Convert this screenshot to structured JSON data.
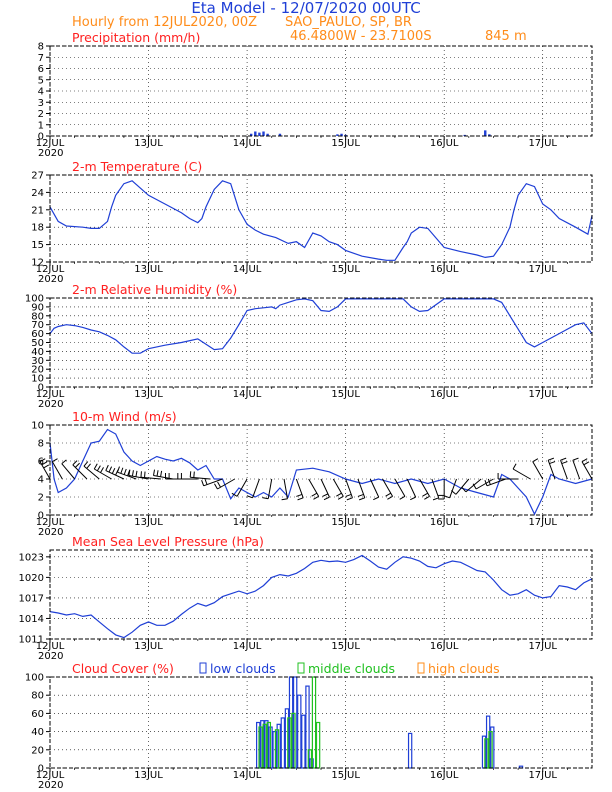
{
  "header": {
    "title": "Eta Model - 12/07/2020 00UTC",
    "subtitle": "Hourly from 12JUL2020, 00Z",
    "location": "SAO_PAULO, SP, BR",
    "coords": "46.4800W - 23.7100S",
    "elevation": "845  m"
  },
  "colors": {
    "title": "#1f3fd6",
    "header": "#ff8c1a",
    "panel_title": "#ff2020",
    "series": "#1f3fd6",
    "low": "#1f3fd6",
    "middle": "#20c020",
    "high": "#ff8c1a",
    "wind_barb": "#000000"
  },
  "time_axis": {
    "start_label": "2020",
    "ticks": [
      "12JUL",
      "13JUL",
      "14JUL",
      "15JUL",
      "16JUL",
      "17JUL"
    ],
    "tick_hours": [
      0,
      24,
      48,
      72,
      96,
      120
    ],
    "range_hours": [
      0,
      132
    ]
  },
  "chart_data": [
    {
      "type": "bar",
      "title": "Precipitation (mm/h)",
      "ylim": [
        0,
        8
      ],
      "yticks": [
        0,
        1,
        2,
        3,
        4,
        5,
        6,
        7,
        8
      ],
      "x": [
        49,
        50,
        51,
        52,
        53,
        56,
        70,
        71,
        72,
        101,
        106,
        107
      ],
      "values": [
        0.2,
        0.4,
        0.3,
        0.4,
        0.2,
        0.2,
        0.15,
        0.2,
        0.1,
        0.1,
        0.5,
        0.15
      ]
    },
    {
      "type": "line",
      "title": "2-m Temperature (C)",
      "ylim": [
        12,
        27
      ],
      "yticks": [
        12,
        15,
        18,
        21,
        24,
        27
      ],
      "x": [
        0,
        2,
        4,
        8,
        10,
        12,
        14,
        15,
        16,
        18,
        20,
        24,
        28,
        32,
        34,
        36,
        37,
        38,
        40,
        42,
        44,
        46,
        48,
        50,
        52,
        55,
        58,
        60,
        62,
        64,
        66,
        68,
        70,
        72,
        76,
        80,
        82,
        84,
        86,
        87,
        88,
        90,
        92,
        96,
        100,
        104,
        106,
        108,
        110,
        112,
        113,
        114,
        116,
        118,
        120,
        122,
        124,
        128,
        131,
        132
      ],
      "values": [
        21.5,
        19,
        18.2,
        18,
        17.8,
        17.8,
        19,
        21.5,
        23.5,
        25.5,
        26,
        23.5,
        22,
        20.5,
        19.5,
        18.8,
        19.5,
        21.5,
        24.5,
        26,
        25.5,
        21,
        18.5,
        17.5,
        16.8,
        16.2,
        15.2,
        15.5,
        14.5,
        17,
        16.5,
        15.5,
        15,
        14,
        13,
        12.5,
        12.3,
        12.3,
        14.5,
        15.5,
        17,
        18,
        17.8,
        14.5,
        13.8,
        13.2,
        12.8,
        13,
        15,
        18,
        21,
        23.5,
        25.5,
        25,
        22,
        21,
        19.5,
        18,
        16.8,
        20
      ]
    },
    {
      "type": "line",
      "title": "2-m Relative Humidity (%)",
      "ylim": [
        0,
        100
      ],
      "yticks": [
        0,
        10,
        20,
        30,
        40,
        50,
        60,
        70,
        80,
        90,
        100
      ],
      "x": [
        0,
        1,
        2,
        4,
        6,
        8,
        10,
        12,
        14,
        16,
        18,
        20,
        22,
        24,
        28,
        32,
        36,
        38,
        40,
        42,
        44,
        46,
        48,
        50,
        52,
        54,
        55,
        56,
        58,
        60,
        62,
        64,
        66,
        68,
        70,
        72,
        76,
        80,
        84,
        86,
        88,
        90,
        92,
        96,
        100,
        104,
        106,
        108,
        110,
        112,
        114,
        116,
        118,
        120,
        124,
        128,
        130,
        132
      ],
      "values": [
        60,
        66,
        68,
        70,
        69,
        67,
        64,
        62,
        58,
        53,
        45,
        38,
        38,
        43,
        47,
        50,
        54,
        48,
        42,
        43,
        55,
        70,
        86,
        88,
        89,
        90,
        88,
        92,
        95,
        98,
        99,
        97,
        86,
        85,
        90,
        99,
        99,
        99,
        99,
        99,
        90,
        85,
        86,
        99,
        99,
        99,
        99,
        99,
        95,
        80,
        65,
        50,
        45,
        50,
        60,
        70,
        72,
        60
      ]
    },
    {
      "type": "line",
      "title": "10-m Wind (m/s)",
      "ylim": [
        0,
        10
      ],
      "yticks": [
        0,
        2,
        4,
        6,
        8,
        10
      ],
      "x": [
        0,
        1,
        2,
        4,
        6,
        8,
        10,
        12,
        14,
        16,
        18,
        20,
        22,
        24,
        26,
        28,
        30,
        32,
        34,
        36,
        38,
        40,
        42,
        44,
        46,
        48,
        50,
        52,
        54,
        56,
        58,
        60,
        64,
        68,
        72,
        76,
        80,
        84,
        88,
        92,
        96,
        100,
        104,
        108,
        110,
        112,
        114,
        116,
        118,
        120,
        122,
        124,
        128,
        132
      ],
      "values": [
        8,
        4,
        2.5,
        3,
        4,
        6,
        8,
        8.2,
        9.5,
        9,
        7,
        6,
        5.5,
        6,
        6.5,
        6.2,
        6,
        6.3,
        5.8,
        5,
        5.5,
        4,
        4,
        1.8,
        3,
        2.5,
        2,
        2.5,
        2,
        3,
        2,
        5,
        5.2,
        4.8,
        4,
        3.5,
        4,
        3.5,
        4,
        3.5,
        4,
        3,
        2.5,
        2,
        4.5,
        4,
        3,
        2,
        0.1,
        2,
        4.5,
        4,
        3.5,
        4
      ]
    },
    {
      "type": "line",
      "title": "Mean Sea Level Pressure (hPa)",
      "ylim": [
        1011,
        1024
      ],
      "yticks": [
        1011,
        1014,
        1017,
        1020,
        1023
      ],
      "x": [
        0,
        2,
        4,
        6,
        8,
        10,
        12,
        14,
        16,
        18,
        20,
        22,
        24,
        26,
        28,
        30,
        32,
        34,
        36,
        38,
        40,
        42,
        44,
        46,
        48,
        50,
        52,
        54,
        56,
        58,
        60,
        62,
        64,
        66,
        68,
        70,
        72,
        74,
        76,
        78,
        80,
        82,
        84,
        86,
        88,
        90,
        92,
        94,
        96,
        98,
        100,
        102,
        104,
        106,
        108,
        110,
        112,
        114,
        116,
        118,
        120,
        122,
        124,
        126,
        128,
        130,
        132
      ],
      "values": [
        1015,
        1014.8,
        1014.5,
        1014.7,
        1014.3,
        1014.5,
        1013.5,
        1012.5,
        1011.6,
        1011.2,
        1012,
        1013,
        1013.5,
        1013,
        1013,
        1013.6,
        1014.6,
        1015.5,
        1016.2,
        1015.8,
        1016.3,
        1017.2,
        1017.6,
        1018,
        1017.6,
        1018,
        1018.8,
        1020,
        1020.4,
        1020.2,
        1020.6,
        1021.3,
        1022.2,
        1022.5,
        1022.3,
        1022.4,
        1022.2,
        1022.6,
        1023.2,
        1022.4,
        1021.5,
        1021.2,
        1022.2,
        1023,
        1022.8,
        1022.4,
        1021.6,
        1021.4,
        1022,
        1022.4,
        1022.2,
        1021.6,
        1021,
        1020.8,
        1019.6,
        1018.2,
        1017.4,
        1017.6,
        1018.2,
        1017.4,
        1017,
        1017.2,
        1018.8,
        1018.6,
        1018.2,
        1019.2,
        1019.8
      ]
    },
    {
      "type": "bar",
      "title": "Cloud Cover (%)",
      "ylim": [
        0,
        100
      ],
      "yticks": [
        0,
        20,
        40,
        60,
        80,
        100
      ],
      "legend": [
        "low clouds",
        "middle clouds",
        "high clouds"
      ],
      "series": [
        {
          "name": "low clouds",
          "x": [
            51,
            52,
            53,
            54,
            55,
            56,
            57,
            58,
            59,
            60,
            61,
            62,
            63,
            64,
            88,
            106,
            107,
            108,
            115
          ],
          "values": [
            50,
            52,
            52,
            45,
            40,
            48,
            55,
            65,
            100,
            100,
            80,
            58,
            90,
            10,
            38,
            35,
            57,
            45,
            2
          ]
        },
        {
          "name": "middle clouds",
          "x": [
            51,
            52,
            53,
            55,
            58,
            59,
            63,
            64,
            65,
            106,
            107
          ],
          "values": [
            45,
            48,
            50,
            42,
            55,
            60,
            20,
            100,
            50,
            32,
            40
          ]
        },
        {
          "name": "high clouds",
          "x": [],
          "values": []
        }
      ]
    }
  ],
  "wind_barbs": {
    "x": [
      0,
      3,
      6,
      9,
      12,
      15,
      18,
      21,
      24,
      27,
      30,
      33,
      36,
      39,
      42,
      45,
      48,
      51,
      54,
      57,
      60,
      63,
      66,
      69,
      72,
      75,
      78,
      81,
      84,
      87,
      90,
      93,
      96,
      99,
      102,
      105,
      108,
      111,
      114,
      117,
      120,
      123,
      126,
      129,
      132
    ],
    "speed": [
      8,
      3,
      3,
      4,
      6,
      8,
      9.5,
      9,
      7,
      6,
      6.5,
      6,
      6,
      5.5,
      4.5,
      4,
      2.5,
      2.5,
      2.5,
      2.5,
      4,
      5,
      5.5,
      5,
      4,
      4,
      3.5,
      4,
      3.5,
      3.5,
      4,
      3.5,
      4,
      3,
      2.5,
      2.5,
      3,
      4,
      2,
      1,
      3,
      4,
      4,
      3.5,
      4
    ],
    "direction_deg": [
      330,
      330,
      320,
      315,
      310,
      300,
      295,
      290,
      280,
      275,
      280,
      270,
      270,
      275,
      250,
      240,
      210,
      200,
      190,
      170,
      160,
      150,
      155,
      150,
      160,
      160,
      155,
      150,
      150,
      155,
      150,
      160,
      180,
      200,
      220,
      230,
      240,
      250,
      270,
      300,
      330,
      340,
      340,
      340,
      330
    ]
  }
}
